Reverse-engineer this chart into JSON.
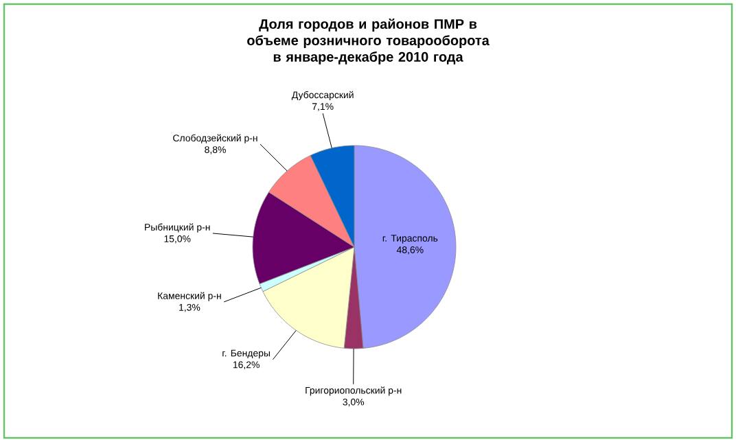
{
  "chart_data": {
    "type": "pie",
    "title": "Доля городов и районов ПМР в объеме розничного товарооборота в январе-декабре 2010 года",
    "categories": [
      "г. Тирасполь",
      "Григориопольский р-н",
      "г. Бендеры",
      "Каменский р-н",
      "Рыбницкий р-н",
      "Слободзейский р-н",
      "Дубоссарский"
    ],
    "values": [
      48.6,
      3.0,
      16.2,
      1.3,
      15.0,
      8.8,
      7.1
    ],
    "value_labels": [
      "48,6%",
      "3,0%",
      "16,2%",
      "1,3%",
      "15,0%",
      "8,8%",
      "7,1%"
    ],
    "colors": [
      "#9999ff",
      "#993366",
      "#ffffcc",
      "#ccffff",
      "#660066",
      "#ff8080",
      "#0066cc"
    ]
  }
}
